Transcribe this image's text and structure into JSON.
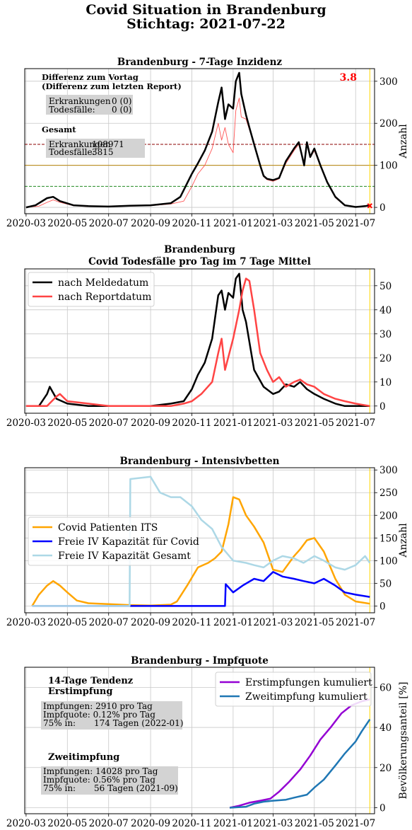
{
  "figure": {
    "suptitle_line1": "Covid Situation in Brandenburg",
    "suptitle_line2": "Stichtag: 2021-07-22"
  },
  "x_tick_labels": [
    "2020-03",
    "2020-05",
    "2020-07",
    "2020-09",
    "2020-11",
    "2021-01",
    "2021-03",
    "2021-05",
    "2021-07"
  ],
  "chart_data": [
    {
      "type": "line",
      "title": "Brandenburg - 7-Tage Inzidenz",
      "xlabel": "",
      "ylabel": "Anzahl",
      "ylim": [
        -15,
        330
      ],
      "yticks": [
        0,
        100,
        200,
        300
      ],
      "grid": true,
      "x_range": [
        "2020-03-01",
        "2021-07-22"
      ],
      "reference_lines": [
        {
          "value": 150,
          "color": "#8b0000",
          "style": "dashed"
        },
        {
          "value": 100,
          "color": "#b8860b",
          "style": "solid"
        },
        {
          "value": 50,
          "color": "#228b22",
          "style": "dashed"
        }
      ],
      "series": [
        {
          "color": "#000000",
          "x": [
            "2020-03-01",
            "2020-03-15",
            "2020-04-01",
            "2020-04-10",
            "2020-04-20",
            "2020-05-10",
            "2020-06-01",
            "2020-07-01",
            "2020-08-01",
            "2020-09-01",
            "2020-10-01",
            "2020-10-15",
            "2020-11-01",
            "2020-11-10",
            "2020-11-20",
            "2020-12-01",
            "2020-12-10",
            "2020-12-15",
            "2020-12-20",
            "2020-12-25",
            "2021-01-01",
            "2021-01-05",
            "2021-01-10",
            "2021-01-13",
            "2021-01-20",
            "2021-01-25",
            "2021-02-01",
            "2021-02-10",
            "2021-02-15",
            "2021-02-20",
            "2021-03-01",
            "2021-03-10",
            "2021-03-20",
            "2021-04-01",
            "2021-04-08",
            "2021-04-12",
            "2021-04-16",
            "2021-04-20",
            "2021-04-25",
            "2021-05-01",
            "2021-05-10",
            "2021-05-20",
            "2021-06-01",
            "2021-06-15",
            "2021-07-01",
            "2021-07-15",
            "2021-07-22"
          ],
          "y": [
            0,
            5,
            22,
            25,
            15,
            5,
            3,
            2,
            4,
            5,
            10,
            25,
            80,
            105,
            135,
            180,
            250,
            285,
            210,
            245,
            235,
            300,
            320,
            270,
            220,
            190,
            150,
            100,
            75,
            68,
            65,
            70,
            110,
            140,
            155,
            128,
            100,
            155,
            120,
            140,
            100,
            60,
            25,
            5,
            1,
            3,
            5
          ]
        },
        {
          "color": "#ff5555",
          "x": [
            "2020-03-01",
            "2020-03-20",
            "2020-04-01",
            "2020-04-10",
            "2020-04-20",
            "2020-05-10",
            "2020-06-01",
            "2020-07-01",
            "2020-08-01",
            "2020-09-01",
            "2020-10-01",
            "2020-10-20",
            "2020-11-01",
            "2020-11-10",
            "2020-11-20",
            "2020-12-01",
            "2020-12-10",
            "2020-12-15",
            "2020-12-20",
            "2020-12-25",
            "2021-01-01",
            "2021-01-05",
            "2021-01-10",
            "2021-01-13",
            "2021-01-20",
            "2021-01-25",
            "2021-02-01",
            "2021-02-10",
            "2021-02-15",
            "2021-02-20",
            "2021-03-01",
            "2021-03-10",
            "2021-03-20",
            "2021-04-01",
            "2021-04-08",
            "2021-04-12",
            "2021-04-16",
            "2021-04-20",
            "2021-04-25",
            "2021-05-01",
            "2021-05-10",
            "2021-05-20",
            "2021-06-01",
            "2021-06-15",
            "2021-07-01",
            "2021-07-15",
            "2021-07-22"
          ],
          "y": [
            0,
            3,
            12,
            18,
            12,
            4,
            2,
            2,
            3,
            4,
            8,
            15,
            50,
            80,
            100,
            140,
            200,
            160,
            190,
            150,
            130,
            230,
            260,
            215,
            210,
            185,
            150,
            100,
            73,
            66,
            62,
            68,
            105,
            135,
            150,
            125,
            100,
            150,
            118,
            135,
            98,
            58,
            23,
            4,
            1,
            3,
            4
          ]
        }
      ],
      "value_marker": {
        "x": "2021-07-22",
        "y": 3.8,
        "label": "3.8",
        "color": "#ff0000"
      },
      "annotations": {
        "header_line1": "Differenz zum Vortag",
        "header_line2": "(Differenz zum letzten Report)",
        "diff_label_1": "Erkrankungen",
        "diff_value_1": "0 (0)",
        "diff_label_2": "Todesfälle:",
        "diff_value_2": "0 (0)",
        "total_header": "Gesamt",
        "total_label_1": "Erkrankungen",
        "total_value_1": "108971",
        "total_label_2": "Todesfälle:",
        "total_value_2": "3815"
      }
    },
    {
      "type": "line",
      "title": "Brandenburg",
      "subtitle": "Covid Todesfälle pro Tag im 7 Tage Mittel",
      "xlabel": "",
      "ylabel": "",
      "ylim": [
        -3,
        57
      ],
      "yticks": [
        0,
        10,
        20,
        30,
        40,
        50
      ],
      "grid": true,
      "legend": "top-left",
      "series": [
        {
          "name": "nach Meldedatum",
          "color": "#000000",
          "x": [
            "2020-03-01",
            "2020-03-20",
            "2020-04-01",
            "2020-04-05",
            "2020-04-15",
            "2020-05-01",
            "2020-06-01",
            "2020-07-01",
            "2020-08-01",
            "2020-09-01",
            "2020-10-01",
            "2020-10-20",
            "2020-11-01",
            "2020-11-10",
            "2020-11-20",
            "2020-12-01",
            "2020-12-10",
            "2020-12-15",
            "2020-12-20",
            "2020-12-25",
            "2021-01-01",
            "2021-01-05",
            "2021-01-10",
            "2021-01-15",
            "2021-01-20",
            "2021-02-01",
            "2021-02-15",
            "2021-03-01",
            "2021-03-10",
            "2021-03-20",
            "2021-04-01",
            "2021-04-10",
            "2021-04-20",
            "2021-05-01",
            "2021-05-15",
            "2021-06-01",
            "2021-06-15",
            "2021-07-01",
            "2021-07-22"
          ],
          "y": [
            0,
            0,
            5,
            8,
            3,
            1,
            0,
            0,
            0,
            0,
            1,
            2,
            7,
            13,
            18,
            28,
            46,
            48,
            40,
            47,
            45,
            53,
            55,
            40,
            35,
            15,
            8,
            5,
            6,
            9,
            8,
            10,
            7,
            5,
            3,
            1,
            0,
            0,
            0
          ]
        },
        {
          "name": "nach Reportdatum",
          "color": "#ff4444",
          "x": [
            "2020-03-01",
            "2020-04-01",
            "2020-04-15",
            "2020-04-20",
            "2020-05-01",
            "2020-06-01",
            "2020-07-01",
            "2020-08-01",
            "2020-09-01",
            "2020-10-01",
            "2020-10-20",
            "2020-11-01",
            "2020-11-15",
            "2020-12-01",
            "2020-12-10",
            "2020-12-15",
            "2020-12-20",
            "2021-01-01",
            "2021-01-10",
            "2021-01-15",
            "2021-01-20",
            "2021-01-25",
            "2021-02-01",
            "2021-02-10",
            "2021-02-20",
            "2021-03-01",
            "2021-03-10",
            "2021-03-20",
            "2021-04-01",
            "2021-04-10",
            "2021-04-20",
            "2021-05-01",
            "2021-05-15",
            "2021-06-01",
            "2021-06-15",
            "2021-07-01",
            "2021-07-22"
          ],
          "y": [
            0,
            0,
            4,
            5,
            2,
            1,
            0,
            0,
            0,
            0,
            1,
            2,
            5,
            10,
            22,
            28,
            15,
            28,
            40,
            48,
            53,
            52,
            40,
            22,
            15,
            10,
            12,
            8,
            10,
            11,
            9,
            8,
            5,
            3,
            2,
            1,
            0
          ]
        }
      ]
    },
    {
      "type": "line",
      "title": "Brandenburg - Intensivbetten",
      "xlabel": "",
      "ylabel": "Anzahl",
      "ylim": [
        -15,
        305
      ],
      "yticks": [
        0,
        50,
        100,
        150,
        200,
        250,
        300
      ],
      "grid": true,
      "legend": "center-left",
      "series": [
        {
          "name": "Covid Patienten ITS",
          "color": "#ffa500",
          "x": [
            "2020-03-10",
            "2020-03-20",
            "2020-04-01",
            "2020-04-10",
            "2020-04-20",
            "2020-05-01",
            "2020-05-15",
            "2020-06-01",
            "2020-07-01",
            "2020-08-01",
            "2020-09-01",
            "2020-10-01",
            "2020-10-10",
            "2020-10-25",
            "2020-11-10",
            "2020-11-25",
            "2020-12-05",
            "2020-12-15",
            "2020-12-25",
            "2021-01-01",
            "2021-01-10",
            "2021-01-20",
            "2021-02-01",
            "2021-02-15",
            "2021-03-01",
            "2021-03-15",
            "2021-04-01",
            "2021-04-10",
            "2021-04-20",
            "2021-05-01",
            "2021-05-15",
            "2021-06-01",
            "2021-06-15",
            "2021-07-01",
            "2021-07-22"
          ],
          "y": [
            0,
            25,
            45,
            55,
            45,
            30,
            12,
            6,
            4,
            2,
            1,
            3,
            10,
            45,
            85,
            95,
            105,
            120,
            180,
            240,
            235,
            200,
            175,
            140,
            80,
            75,
            110,
            125,
            145,
            150,
            120,
            60,
            25,
            10,
            5
          ]
        },
        {
          "name": "Freie IV Kapazität für Covid",
          "color": "#0000ff",
          "x": [
            "2020-03-10",
            "2020-08-01",
            "2020-12-20",
            "2020-12-21",
            "2021-01-01",
            "2021-01-15",
            "2021-02-01",
            "2021-02-15",
            "2021-03-01",
            "2021-03-15",
            "2021-04-01",
            "2021-04-15",
            "2021-05-01",
            "2021-05-15",
            "2021-06-01",
            "2021-06-15",
            "2021-07-01",
            "2021-07-22"
          ],
          "y": [
            0,
            0,
            0,
            48,
            30,
            45,
            60,
            55,
            75,
            65,
            60,
            55,
            50,
            60,
            45,
            30,
            25,
            20
          ]
        },
        {
          "name": "Freie IV Kapazität Gesamt",
          "color": "#add8e6",
          "x": [
            "2020-03-10",
            "2020-08-01",
            "2020-08-02",
            "2020-09-01",
            "2020-09-15",
            "2020-10-01",
            "2020-10-15",
            "2020-11-01",
            "2020-11-15",
            "2020-12-01",
            "2020-12-15",
            "2021-01-01",
            "2021-01-20",
            "2021-02-01",
            "2021-02-15",
            "2021-03-01",
            "2021-03-15",
            "2021-04-01",
            "2021-04-15",
            "2021-05-01",
            "2021-05-15",
            "2021-06-01",
            "2021-06-15",
            "2021-07-01",
            "2021-07-15",
            "2021-07-22"
          ],
          "y": [
            0,
            0,
            280,
            285,
            250,
            240,
            240,
            220,
            190,
            170,
            130,
            100,
            95,
            90,
            85,
            100,
            110,
            105,
            95,
            110,
            100,
            85,
            80,
            90,
            110,
            95
          ]
        }
      ]
    },
    {
      "type": "line",
      "title": "Brandenburg - Impfquote",
      "xlabel": "",
      "ylabel": "Bevölkerungsanteil [%]",
      "ylim": [
        -3,
        70
      ],
      "yticks": [
        0,
        20,
        40,
        60
      ],
      "grid": true,
      "legend": "top-right",
      "series": [
        {
          "name": "Erstimpfungen kumuliert",
          "color": "#9400d3",
          "x": [
            "2020-12-27",
            "2021-01-10",
            "2021-01-25",
            "2021-02-10",
            "2021-02-25",
            "2021-03-10",
            "2021-03-25",
            "2021-04-10",
            "2021-04-25",
            "2021-05-10",
            "2021-05-25",
            "2021-06-10",
            "2021-06-25",
            "2021-07-10",
            "2021-07-22"
          ],
          "y": [
            0,
            1,
            2.5,
            3.5,
            4.5,
            8,
            13,
            19,
            26,
            34,
            40,
            47,
            51,
            53,
            54
          ]
        },
        {
          "name": "Zweitimpfung kumuliert",
          "color": "#1f77b4",
          "x": [
            "2020-12-27",
            "2021-01-20",
            "2021-02-01",
            "2021-02-15",
            "2021-03-01",
            "2021-03-20",
            "2021-04-01",
            "2021-04-20",
            "2021-05-01",
            "2021-05-15",
            "2021-06-01",
            "2021-06-15",
            "2021-07-01",
            "2021-07-10",
            "2021-07-22"
          ],
          "y": [
            0,
            0.5,
            2,
            3,
            3.5,
            4,
            5,
            6.5,
            10,
            14,
            21,
            27,
            33,
            38,
            44
          ]
        }
      ],
      "annotations": {
        "first_header_line1": "14-Tage Tendenz",
        "first_header_line2": "Erstimpfung",
        "first_box_line1": "Impfungen: 2910 pro Tag",
        "first_box_line2": "Impfquote:  0.12% pro Tag",
        "first_box_line3_label": "75% in:",
        "first_box_line3_value": "174 Tagen (2022-01)",
        "second_header": "Zweitimpfung",
        "second_box_line1": "Impfungen: 14028 pro Tag",
        "second_box_line2": "Impfquote:  0.56% pro Tag",
        "second_box_line3_label": "75% in:",
        "second_box_line3_value": "56 Tagen (2021-09)"
      }
    }
  ]
}
